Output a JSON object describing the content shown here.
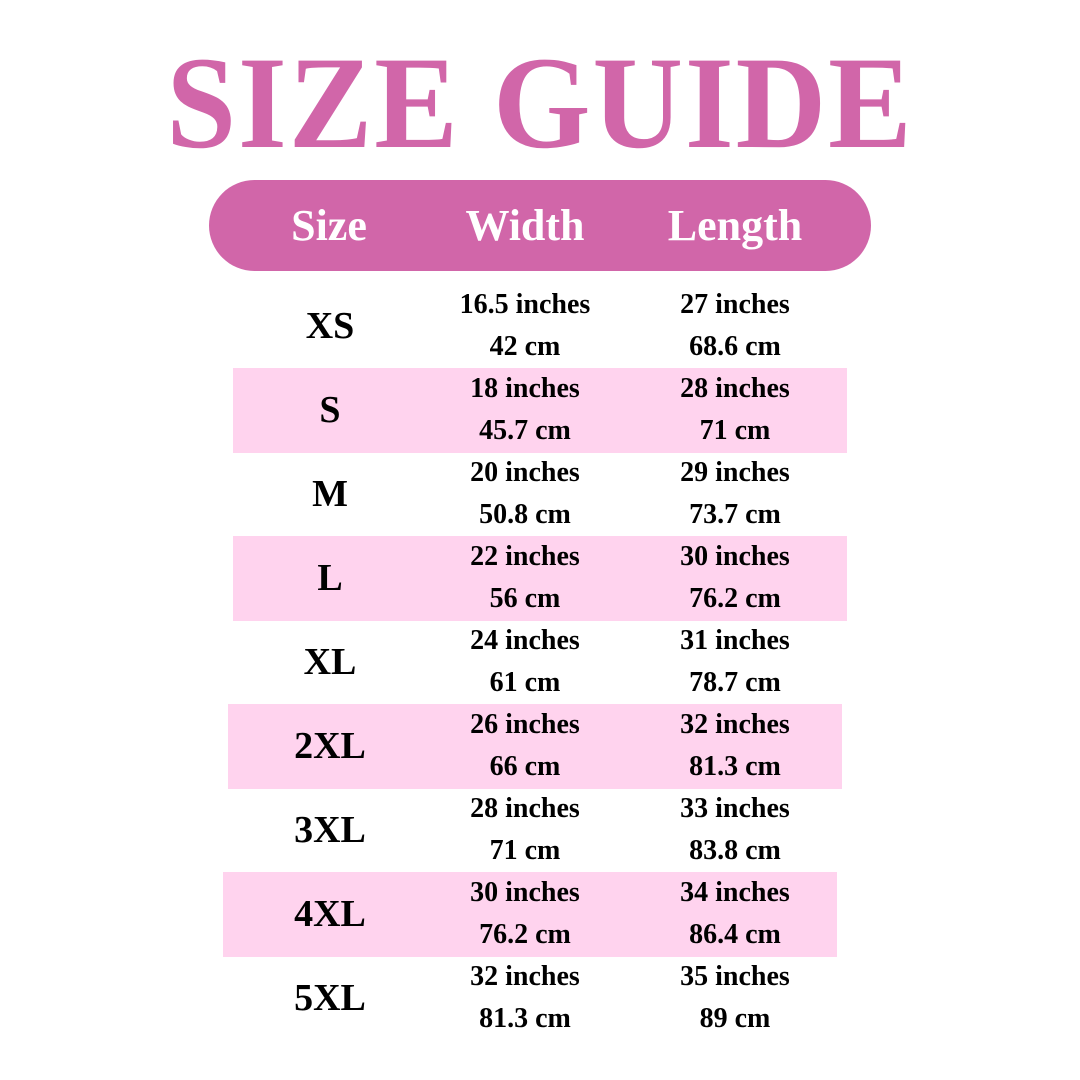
{
  "title": "SIZE GUIDE",
  "colors": {
    "accent": "#D166A9",
    "stripe": "#FFD3EE",
    "text": "#000000"
  },
  "header": {
    "size": "Size",
    "width": "Width",
    "length": "Length"
  },
  "rows": [
    {
      "size": "XS",
      "width_in": "16.5 inches",
      "width_cm": "42 cm",
      "length_in": "27 inches",
      "length_cm": "68.6 cm"
    },
    {
      "size": "S",
      "width_in": "18 inches",
      "width_cm": "45.7 cm",
      "length_in": "28 inches",
      "length_cm": "71 cm"
    },
    {
      "size": "M",
      "width_in": "20 inches",
      "width_cm": "50.8 cm",
      "length_in": "29 inches",
      "length_cm": "73.7 cm"
    },
    {
      "size": "L",
      "width_in": "22 inches",
      "width_cm": "56 cm",
      "length_in": "30 inches",
      "length_cm": "76.2 cm"
    },
    {
      "size": "XL",
      "width_in": "24 inches",
      "width_cm": "61 cm",
      "length_in": "31 inches",
      "length_cm": "78.7 cm"
    },
    {
      "size": "2XL",
      "width_in": "26 inches",
      "width_cm": "66 cm",
      "length_in": "32 inches",
      "length_cm": "81.3 cm"
    },
    {
      "size": "3XL",
      "width_in": "28 inches",
      "width_cm": "71 cm",
      "length_in": "33 inches",
      "length_cm": "83.8 cm"
    },
    {
      "size": "4XL",
      "width_in": "30 inches",
      "width_cm": "76.2 cm",
      "length_in": "34 inches",
      "length_cm": "86.4 cm"
    },
    {
      "size": "5XL",
      "width_in": "32 inches",
      "width_cm": "81.3 cm",
      "length_in": "35 inches",
      "length_cm": "89 cm"
    }
  ]
}
